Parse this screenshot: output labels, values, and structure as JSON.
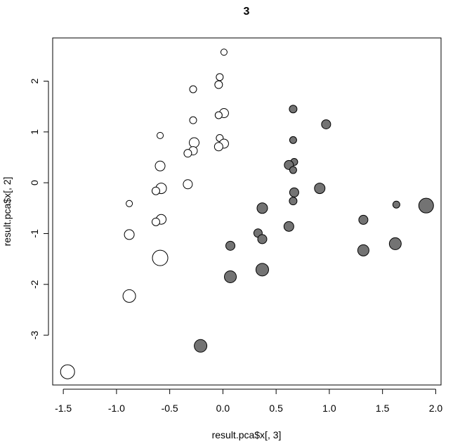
{
  "chart_data": {
    "type": "scatter",
    "title": "3",
    "xlabel": "result.pca$x[, 3]",
    "ylabel": "result.pca$x[, 2]",
    "xlim": [
      -1.6,
      2.05
    ],
    "ylim": [
      -3.98,
      2.85
    ],
    "xticks": [
      -1.5,
      -1.0,
      -0.5,
      0.0,
      0.5,
      1.0,
      1.5,
      2.0
    ],
    "xtick_labels": [
      "-1.5",
      "-1.0",
      "-0.5",
      "0.0",
      "0.5",
      "1.0",
      "1.5",
      "2.0"
    ],
    "yticks": [
      -3,
      -2,
      -1,
      0,
      1,
      2
    ],
    "ytick_labels": [
      "-3",
      "-2",
      "-1",
      "0",
      "1",
      "2"
    ],
    "grid": false,
    "colors": {
      "group_open": "#ffffff",
      "group_filled": "#737373",
      "stroke": "#000000"
    },
    "series": [
      {
        "fill": "#ffffff",
        "points": [
          {
            "x": 0.01,
            "y": 2.57,
            "size": 4.5
          },
          {
            "x": -0.03,
            "y": 2.08,
            "size": 5
          },
          {
            "x": -0.04,
            "y": 1.93,
            "size": 5.5
          },
          {
            "x": -0.28,
            "y": 1.84,
            "size": 5
          },
          {
            "x": 0.01,
            "y": 1.37,
            "size": 6.5
          },
          {
            "x": -0.04,
            "y": 1.33,
            "size": 5
          },
          {
            "x": -0.28,
            "y": 1.23,
            "size": 5
          },
          {
            "x": -0.59,
            "y": 0.93,
            "size": 4.5
          },
          {
            "x": -0.03,
            "y": 0.88,
            "size": 5
          },
          {
            "x": -0.27,
            "y": 0.79,
            "size": 7
          },
          {
            "x": 0.01,
            "y": 0.77,
            "size": 6.5
          },
          {
            "x": -0.04,
            "y": 0.71,
            "size": 6
          },
          {
            "x": -0.28,
            "y": 0.63,
            "size": 6
          },
          {
            "x": -0.33,
            "y": 0.58,
            "size": 5.5
          },
          {
            "x": -0.59,
            "y": 0.33,
            "size": 7
          },
          {
            "x": -0.33,
            "y": -0.03,
            "size": 6.5
          },
          {
            "x": -0.58,
            "y": -0.11,
            "size": 7.5
          },
          {
            "x": -0.63,
            "y": -0.16,
            "size": 5.5
          },
          {
            "x": -0.88,
            "y": -0.41,
            "size": 4.5
          },
          {
            "x": -0.58,
            "y": -0.72,
            "size": 7
          },
          {
            "x": -0.63,
            "y": -0.77,
            "size": 5.5
          },
          {
            "x": -0.88,
            "y": -1.02,
            "size": 7
          },
          {
            "x": -0.59,
            "y": -1.48,
            "size": 11
          },
          {
            "x": -0.88,
            "y": -2.23,
            "size": 9
          },
          {
            "x": -1.46,
            "y": -3.72,
            "size": 10
          }
        ]
      },
      {
        "fill": "#737373",
        "points": [
          {
            "x": 0.66,
            "y": 1.45,
            "size": 5.5
          },
          {
            "x": 0.97,
            "y": 1.15,
            "size": 6.5
          },
          {
            "x": 0.66,
            "y": 0.84,
            "size": 5
          },
          {
            "x": 0.67,
            "y": 0.41,
            "size": 5
          },
          {
            "x": 0.62,
            "y": 0.35,
            "size": 6.5
          },
          {
            "x": 0.66,
            "y": 0.25,
            "size": 5
          },
          {
            "x": 0.67,
            "y": -0.19,
            "size": 6.5
          },
          {
            "x": 0.91,
            "y": -0.11,
            "size": 7.5
          },
          {
            "x": 0.66,
            "y": -0.36,
            "size": 5.5
          },
          {
            "x": 1.63,
            "y": -0.43,
            "size": 5
          },
          {
            "x": 1.91,
            "y": -0.45,
            "size": 10.5
          },
          {
            "x": 0.37,
            "y": -0.5,
            "size": 7.5
          },
          {
            "x": 1.32,
            "y": -0.73,
            "size": 6.5
          },
          {
            "x": 0.62,
            "y": -0.86,
            "size": 7
          },
          {
            "x": 0.33,
            "y": -0.99,
            "size": 6
          },
          {
            "x": 0.37,
            "y": -1.11,
            "size": 6.5
          },
          {
            "x": 0.07,
            "y": -1.24,
            "size": 6.5
          },
          {
            "x": 1.62,
            "y": -1.2,
            "size": 8.5
          },
          {
            "x": 1.32,
            "y": -1.33,
            "size": 8
          },
          {
            "x": 0.37,
            "y": -1.71,
            "size": 9
          },
          {
            "x": 0.07,
            "y": -1.85,
            "size": 8.5
          },
          {
            "x": -0.21,
            "y": -3.21,
            "size": 9
          }
        ]
      }
    ]
  }
}
